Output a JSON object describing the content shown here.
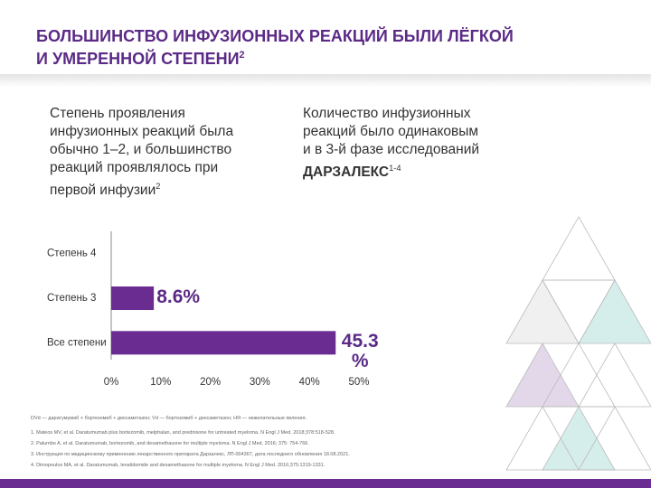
{
  "header": {
    "title_lines": [
      "БОЛЬШИНСТВО ИНФУЗИОННЫХ РЕАКЦИЙ БЫЛИ ЛЁГКОЙ",
      "И УМЕРЕННОЙ СТЕПЕНИ"
    ],
    "title_sup": "2"
  },
  "left_text": {
    "lines": [
      "Степень проявления",
      "инфузионных реакций была",
      "обычно 1–2, и большинство",
      "реакций проявлялось при",
      "первой инфузии"
    ],
    "sup": "2"
  },
  "right_text": {
    "lines": [
      "Количество инфузионных",
      "реакций было одинаковым",
      "и в 3-й фазе исследований"
    ],
    "bold": "ДАРЗАЛЕКС",
    "sup": "1-4"
  },
  "chart_data": {
    "type": "bar",
    "orientation": "horizontal",
    "color": "#6b2c91",
    "categories": [
      "Степень 4",
      "Степень 3",
      "Все степени"
    ],
    "values": [
      null,
      8.6,
      45.3
    ],
    "value_labels": [
      null,
      "8.6%",
      "45.3 %"
    ],
    "xlim": [
      0,
      50
    ],
    "xticks": [
      {
        "value": 0,
        "label": "0%"
      },
      {
        "value": 10,
        "label": "10%"
      },
      {
        "value": 20,
        "label": "20%"
      },
      {
        "value": 30,
        "label": "30%"
      },
      {
        "value": 40,
        "label": "40%"
      },
      {
        "value": 50,
        "label": "50%"
      }
    ]
  },
  "footnotes": [
    "DVd — даратумумаб + бортезомиб + дексаметазон; Vd — бортезомиб + дексаметазон; НЯ — нежелательные явления.",
    "1. Mateos MV, et al. Daratumumab plus bortezomib, melphalan, and prednisone for untreated myeloma. N Engl J Med. 2018;378:518-528.",
    "2. Palumbo A, et al. Daratumumab, bortezomib, and dexamethasone for multiple myeloma. N Engl J Med. 2016; 375: 754-766.",
    "3. Инструкция по медицинскому применению лекарственного препарата Дарзалекс, ЛП-004367, дата последнего обновления 18.08.2021.",
    "4. Dimopoulos MA, et al. Daratumumab, lenalidomide and dexamethasone for multiple myeloma. N Engl J Med. 2016;375:1319-1331."
  ]
}
